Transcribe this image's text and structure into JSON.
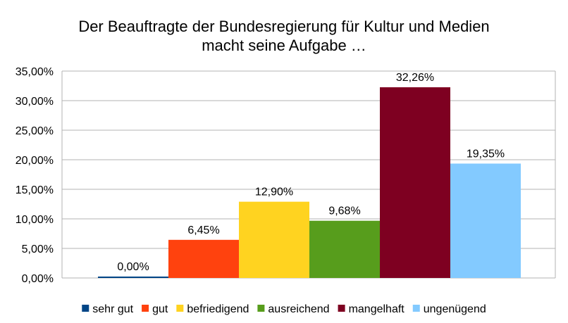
{
  "chart_data": {
    "type": "bar",
    "title_line1": "Der Beauftragte der Bundesregierung für Kultur und Medien",
    "title_line2": "macht seine Aufgabe …",
    "categories": [
      "sehr gut",
      "gut",
      "befriedigend",
      "ausreichend",
      "mangelhaft",
      "ungenügend"
    ],
    "values": [
      0.0,
      6.45,
      12.9,
      9.68,
      32.26,
      19.35
    ],
    "value_labels": [
      "0,00%",
      "6,45%",
      "12,90%",
      "9,68%",
      "32,26%",
      "19,35%"
    ],
    "colors": [
      "#004586",
      "#ff420e",
      "#ffd320",
      "#579d1c",
      "#7e0021",
      "#83caff"
    ],
    "ylim": [
      0,
      35
    ],
    "yticks": [
      0,
      5,
      10,
      15,
      20,
      25,
      30,
      35
    ],
    "ytick_labels": [
      "0,00%",
      "5,00%",
      "10,00%",
      "15,00%",
      "20,00%",
      "25,00%",
      "30,00%",
      "35,00%"
    ],
    "grid": true,
    "legend_position": "bottom"
  }
}
